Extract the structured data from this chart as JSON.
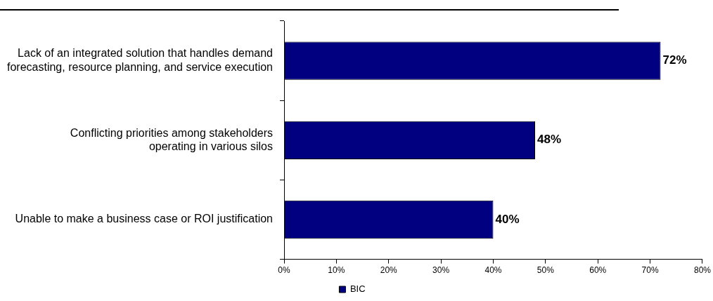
{
  "chart_data": {
    "type": "bar",
    "orientation": "horizontal",
    "categories": [
      "Lack of an integrated solution that handles demand\nforecasting, resource planning, and service execution",
      "Conflicting priorities among stakeholders\noperating in various silos",
      "Unable to make a business case or ROI justification"
    ],
    "series": [
      {
        "name": "BIC",
        "color": "#000080",
        "values": [
          72,
          48,
          40
        ],
        "value_labels": [
          "72%",
          "48%",
          "40%"
        ]
      }
    ],
    "xlim": [
      0,
      80
    ],
    "xticks": [
      {
        "value": 0,
        "label": "0%"
      },
      {
        "value": 10,
        "label": "10%"
      },
      {
        "value": 20,
        "label": "20%"
      },
      {
        "value": 30,
        "label": "30%"
      },
      {
        "value": 40,
        "label": "40%"
      },
      {
        "value": 50,
        "label": "50%"
      },
      {
        "value": 60,
        "label": "60%"
      },
      {
        "value": 70,
        "label": "70%"
      },
      {
        "value": 80,
        "label": "80%"
      }
    ],
    "grid": false,
    "legend": "bottom"
  }
}
